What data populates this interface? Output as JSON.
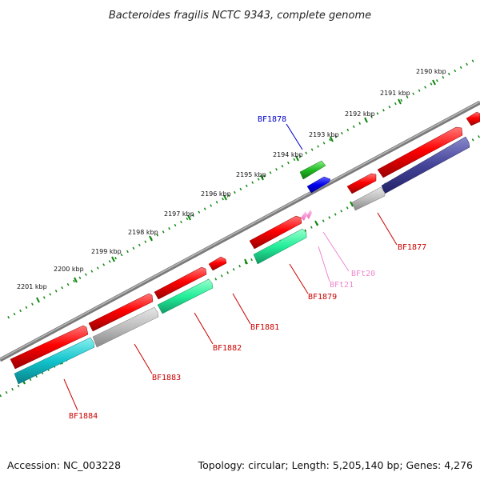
{
  "title": "Bacteroides fragilis NCTC 9343, complete genome",
  "footer": {
    "accession": "Accession: NC_003228",
    "summary": "Topology: circular; Length: 5,205,140 bp; Genes: 4,276"
  },
  "kbp_labels": [
    "2190 kbp",
    "2191 kbp",
    "2192 kbp",
    "2193 kbp",
    "2194 kbp",
    "2195 kbp",
    "2196 kbp",
    "2197 kbp",
    "2198 kbp",
    "2199 kbp",
    "2200 kbp",
    "2201 kbp"
  ],
  "genes": {
    "BF1877": "BF1877",
    "BF1878": "BF1878",
    "BF1879": "BF1879",
    "BF1881": "BF1881",
    "BF1882": "BF1882",
    "BF1883": "BF1883",
    "BF1884": "BF1884",
    "BFt20": "BFt20",
    "BFt21": "BFt21"
  },
  "colors": {
    "cds": "#ff0000",
    "label_red": "#cc0000",
    "label_blue": "#0000cc",
    "label_pink": "#ee88cc",
    "ticks": "#007700",
    "backbone": "#888888",
    "green": "#22bb22",
    "blue": "#0000ee",
    "grey": "#bbbbbb",
    "aqua": "#22dd99",
    "cyan": "#11bbcc",
    "navy": "#333388"
  }
}
